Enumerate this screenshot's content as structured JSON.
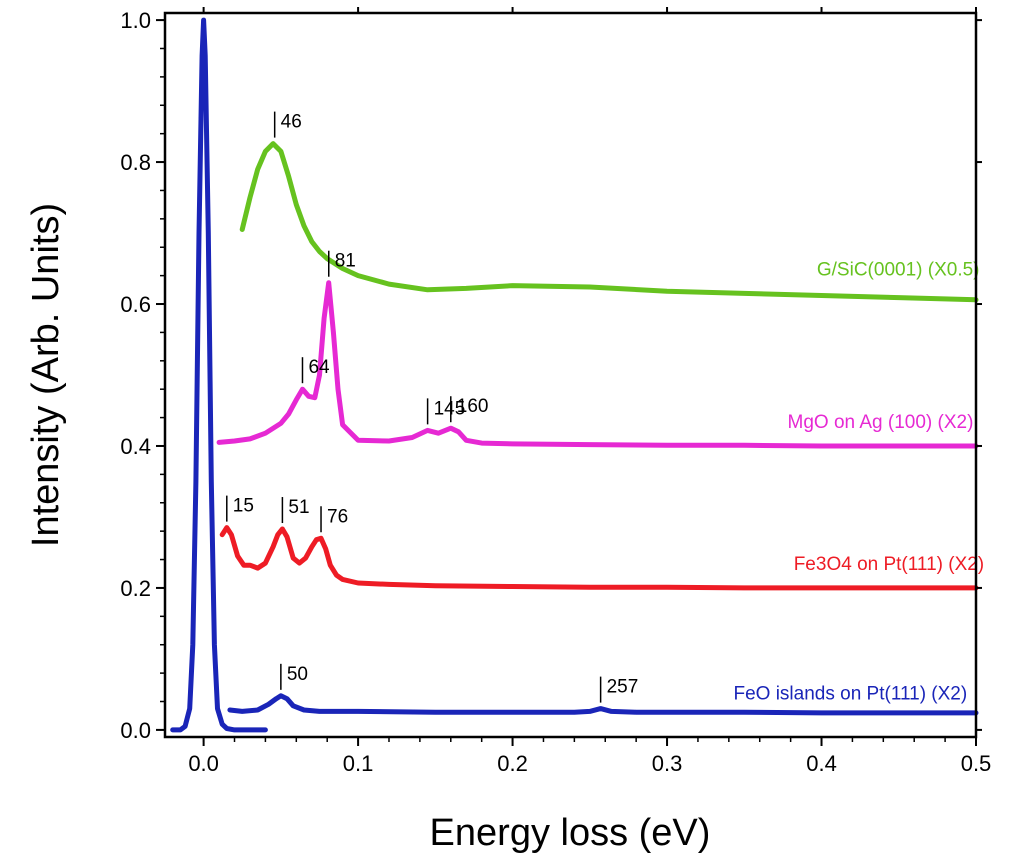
{
  "chart_data": {
    "type": "line",
    "xlabel": "Energy loss (eV)",
    "ylabel": "Intensity (Arb. Units)",
    "xlim": [
      -0.025,
      0.5
    ],
    "ylim": [
      -0.01,
      1.01
    ],
    "xticks": [
      0.0,
      0.1,
      0.2,
      0.3,
      0.4,
      0.5
    ],
    "xtick_labels": [
      "0.0",
      "0.1",
      "0.2",
      "0.3",
      "0.4",
      "0.5"
    ],
    "yticks": [
      0.0,
      0.2,
      0.4,
      0.6,
      0.8,
      1.0
    ],
    "ytick_labels": [
      "0.0",
      "0.2",
      "0.4",
      "0.6",
      "0.8",
      "1.0"
    ],
    "grid": false,
    "series": [
      {
        "name": "G/SiC(0001) (X0.5)",
        "color": "#66c21f",
        "x": [
          0.025,
          0.03,
          0.035,
          0.04,
          0.045,
          0.05,
          0.055,
          0.06,
          0.065,
          0.07,
          0.075,
          0.08,
          0.09,
          0.1,
          0.12,
          0.145,
          0.17,
          0.2,
          0.25,
          0.3,
          0.35,
          0.4,
          0.45,
          0.5
        ],
        "y": [
          0.705,
          0.75,
          0.79,
          0.815,
          0.826,
          0.815,
          0.78,
          0.74,
          0.71,
          0.688,
          0.674,
          0.664,
          0.65,
          0.64,
          0.628,
          0.62,
          0.622,
          0.626,
          0.624,
          0.618,
          0.615,
          0.612,
          0.609,
          0.606
        ]
      },
      {
        "name": "MgO on Ag (100) (X2)",
        "color": "#e629d3",
        "x": [
          0.01,
          0.02,
          0.03,
          0.04,
          0.05,
          0.055,
          0.06,
          0.064,
          0.068,
          0.072,
          0.075,
          0.078,
          0.081,
          0.084,
          0.087,
          0.09,
          0.1,
          0.12,
          0.135,
          0.145,
          0.152,
          0.16,
          0.165,
          0.17,
          0.18,
          0.2,
          0.25,
          0.3,
          0.35,
          0.4,
          0.45,
          0.5
        ],
        "y": [
          0.405,
          0.407,
          0.41,
          0.418,
          0.432,
          0.445,
          0.465,
          0.48,
          0.47,
          0.468,
          0.5,
          0.58,
          0.63,
          0.56,
          0.48,
          0.43,
          0.408,
          0.407,
          0.412,
          0.422,
          0.418,
          0.425,
          0.42,
          0.408,
          0.404,
          0.403,
          0.402,
          0.401,
          0.401,
          0.4,
          0.4,
          0.4
        ]
      },
      {
        "name": "Fe3O4 on Pt(111) (X2)",
        "color": "#ee1c25",
        "x": [
          0.012,
          0.015,
          0.018,
          0.022,
          0.026,
          0.03,
          0.035,
          0.04,
          0.045,
          0.048,
          0.051,
          0.054,
          0.058,
          0.062,
          0.066,
          0.07,
          0.073,
          0.076,
          0.079,
          0.082,
          0.086,
          0.09,
          0.1,
          0.12,
          0.15,
          0.2,
          0.25,
          0.3,
          0.35,
          0.4,
          0.45,
          0.5
        ],
        "y": [
          0.275,
          0.285,
          0.275,
          0.245,
          0.232,
          0.232,
          0.228,
          0.235,
          0.258,
          0.275,
          0.283,
          0.272,
          0.242,
          0.235,
          0.242,
          0.258,
          0.268,
          0.27,
          0.255,
          0.232,
          0.218,
          0.212,
          0.207,
          0.205,
          0.203,
          0.202,
          0.201,
          0.201,
          0.2,
          0.2,
          0.2,
          0.2
        ]
      },
      {
        "name": "FeO islands on Pt(111) (X2)",
        "color": "#1a25b8",
        "x": [
          -0.02,
          -0.015,
          -0.012,
          -0.009,
          -0.007,
          -0.005,
          -0.003,
          -0.001,
          0.0,
          0.001,
          0.003,
          0.005,
          0.007,
          0.009,
          0.012,
          0.015,
          0.02,
          0.03,
          0.04
        ],
        "y": [
          0.0,
          0.0,
          0.005,
          0.03,
          0.12,
          0.35,
          0.7,
          0.95,
          1.0,
          0.95,
          0.7,
          0.35,
          0.12,
          0.03,
          0.008,
          0.002,
          0.0,
          0.0,
          0.0
        ]
      },
      {
        "name": "FeO islands on Pt(111) (X2)",
        "color": "#1a25b8",
        "x": [
          0.017,
          0.025,
          0.035,
          0.042,
          0.047,
          0.05,
          0.054,
          0.058,
          0.065,
          0.075,
          0.1,
          0.15,
          0.2,
          0.24,
          0.25,
          0.257,
          0.264,
          0.28,
          0.3,
          0.35,
          0.4,
          0.45,
          0.5
        ],
        "y": [
          0.028,
          0.026,
          0.028,
          0.036,
          0.044,
          0.048,
          0.044,
          0.034,
          0.028,
          0.026,
          0.026,
          0.025,
          0.025,
          0.025,
          0.026,
          0.03,
          0.026,
          0.025,
          0.025,
          0.025,
          0.024,
          0.024,
          0.024
        ]
      }
    ],
    "series_labels": [
      {
        "text": "G/SiC(0001) (X0.5)",
        "color": "#66c21f",
        "x": 0.397,
        "y": 0.64
      },
      {
        "text": "MgO on Ag (100) (X2)",
        "color": "#e629d3",
        "x": 0.378,
        "y": 0.425
      },
      {
        "text": "Fe3O4 on Pt(111) (X2)",
        "color": "#ee1c25",
        "x": 0.382,
        "y": 0.225
      },
      {
        "text": "FeO islands on Pt(111) (X2)",
        "color": "#1a25b8",
        "x": 0.343,
        "y": 0.043
      }
    ],
    "annotations": [
      {
        "text": "46",
        "x": 0.046,
        "y": 0.826
      },
      {
        "text": "81",
        "x": 0.081,
        "y": 0.63
      },
      {
        "text": "64",
        "x": 0.064,
        "y": 0.48
      },
      {
        "text": "145",
        "x": 0.145,
        "y": 0.422
      },
      {
        "text": "160",
        "x": 0.16,
        "y": 0.425
      },
      {
        "text": "15",
        "x": 0.015,
        "y": 0.285
      },
      {
        "text": "51",
        "x": 0.051,
        "y": 0.283
      },
      {
        "text": "76",
        "x": 0.076,
        "y": 0.27
      },
      {
        "text": "50",
        "x": 0.05,
        "y": 0.048
      },
      {
        "text": "257",
        "x": 0.257,
        "y": 0.03
      }
    ]
  }
}
